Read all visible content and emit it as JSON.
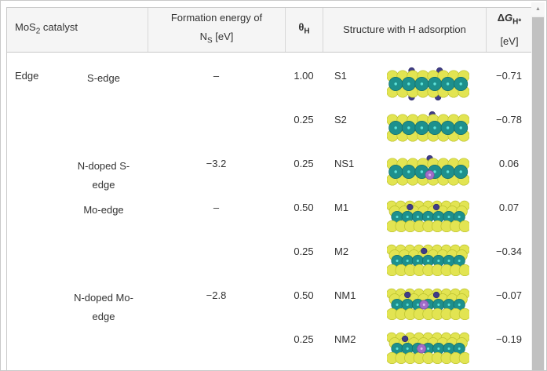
{
  "colors": {
    "text": "#333333",
    "table_border": "#c9c9c9",
    "header_separator": "#d7d7d7",
    "header_bg": "#f5f5f5",
    "scroll_track": "#f1f1f1",
    "scroll_thumb": "#c1c1c1",
    "s_atom": "#e2e452",
    "s_stroke": "#bcc22e",
    "mo_atom": "#1d908d",
    "mo_stroke": "#126b69",
    "mo_dot": "#62e3da",
    "h_atom": "#3f3c88",
    "h_stroke": "#2c2a63",
    "n_atom": "#a06cc8",
    "n_stroke": "#7c4d9e",
    "n_dot": "#ddb9f2"
  },
  "header": {
    "c1_pre": "MoS",
    "c1_sub": "2",
    "c1_post": " catalyst",
    "c2_line1": "Formation energy of",
    "c2_pre": "N",
    "c2_sub": "S",
    "c2_post": " [eV]",
    "c3_sym": "θ",
    "c3_sub": "H",
    "c4": "Structure with H adsorption",
    "c5_delta": "Δ",
    "c5_g": "G",
    "c5_sub": "H*",
    "c5_unit": "[eV]"
  },
  "scrollbar": {
    "up_arrow": "▲"
  },
  "table": {
    "rows": [
      {
        "group": "Edge",
        "edge": "S-edge",
        "formation": "–",
        "theta": "1.00",
        "label": "S1",
        "dg": "−0.71",
        "mol": {
          "type": "s",
          "h_top": [
            0.3,
            0.64
          ],
          "h_bottom": [
            0.3,
            0.62
          ],
          "n": null
        }
      },
      {
        "group": "",
        "edge": "",
        "formation": "",
        "theta": "0.25",
        "label": "S2",
        "dg": "−0.78",
        "mol": {
          "type": "s",
          "h_top": [
            0.55
          ],
          "h_bottom": [],
          "n": null
        }
      },
      {
        "group": "",
        "edge": "N-doped S-edge",
        "formation": "−3.2",
        "theta": "0.25",
        "label": "NS1",
        "dg": "0.06",
        "mol": {
          "type": "s",
          "h_top": [
            0.52
          ],
          "h_bottom": [],
          "n": 0.52
        }
      },
      {
        "group": "",
        "edge": "Mo-edge",
        "formation": "–",
        "theta": "0.50",
        "label": "M1",
        "dg": "0.07",
        "mol": {
          "type": "m",
          "h_top": [
            0.28,
            0.6
          ],
          "h_bottom": [],
          "n": null
        }
      },
      {
        "group": "",
        "edge": "",
        "formation": "",
        "theta": "0.25",
        "label": "M2",
        "dg": "−0.34",
        "mol": {
          "type": "m",
          "h_top": [
            0.45
          ],
          "h_bottom": [],
          "n": null
        }
      },
      {
        "group": "",
        "edge": "N-doped Mo-edge",
        "formation": "−2.8",
        "theta": "0.50",
        "label": "NM1",
        "dg": "−0.07",
        "mol": {
          "type": "m",
          "h_top": [
            0.25,
            0.6
          ],
          "h_bottom": [],
          "n": 0.45
        }
      },
      {
        "group": "",
        "edge": "",
        "formation": "",
        "theta": "0.25",
        "label": "NM2",
        "dg": "−0.19",
        "mol": {
          "type": "m",
          "h_top": [
            0.22
          ],
          "h_bottom": [],
          "n": 0.42
        }
      }
    ]
  }
}
